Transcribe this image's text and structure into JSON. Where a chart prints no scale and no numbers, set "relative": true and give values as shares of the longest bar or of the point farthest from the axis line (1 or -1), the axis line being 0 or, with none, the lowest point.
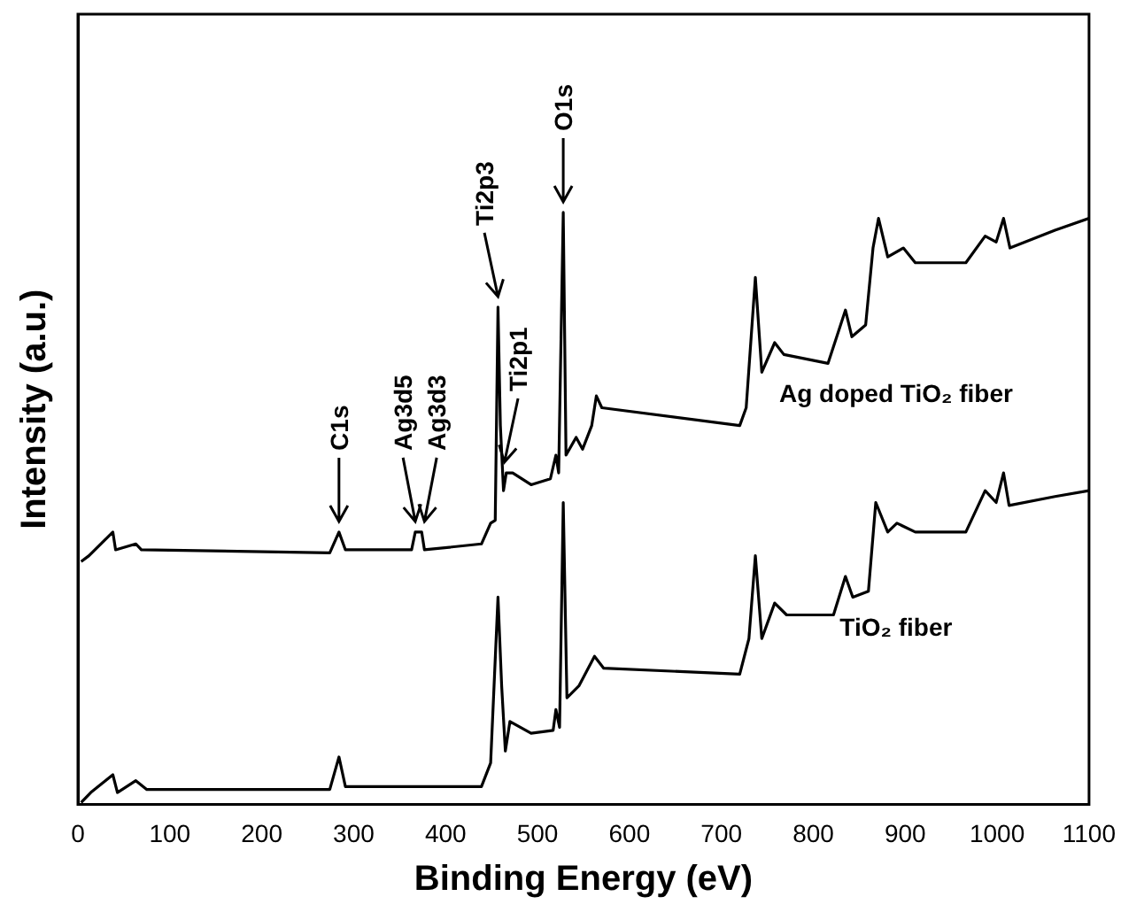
{
  "chart_data": {
    "type": "line",
    "xlabel": "Binding Energy (eV)",
    "ylabel": "Intensity (a.u.)",
    "relative": true,
    "tick_labels": "x",
    "grid": false,
    "legend": false,
    "marker": "none",
    "line_style": "solid",
    "xlim": [
      0,
      1100
    ],
    "xticks": [
      0,
      100,
      200,
      300,
      400,
      500,
      600,
      700,
      800,
      900,
      1000,
      1100
    ],
    "series": [
      {
        "name": "Ag doped TiO₂ fiber",
        "color": "#000000",
        "x": [
          3.5,
          12,
          38,
          41,
          63,
          69,
          274,
          284,
          291,
          363,
          367,
          374,
          377,
          439,
          449,
          454,
          457,
          459.6,
          463,
          466,
          473,
          493,
          514,
          520,
          523,
          528,
          531,
          542,
          549,
          559,
          564,
          570,
          720,
          727,
          737,
          744,
          758,
          768,
          816,
          835,
          842,
          857,
          865,
          871,
          881,
          898,
          911,
          966,
          987,
          999,
          1007,
          1014,
          1063,
          1100
        ],
        "values": [
          0.41,
          0.42,
          0.46,
          0.43,
          0.44,
          0.43,
          0.425,
          0.46,
          0.43,
          0.43,
          0.46,
          0.46,
          0.43,
          0.44,
          0.475,
          0.48,
          0.84,
          0.64,
          0.53,
          0.56,
          0.56,
          0.54,
          0.55,
          0.59,
          0.56,
          1.0,
          0.59,
          0.62,
          0.6,
          0.64,
          0.69,
          0.67,
          0.64,
          0.67,
          0.89,
          0.73,
          0.78,
          0.76,
          0.745,
          0.835,
          0.79,
          0.81,
          0.94,
          0.99,
          0.925,
          0.94,
          0.915,
          0.915,
          0.96,
          0.95,
          0.99,
          0.94,
          0.97,
          0.99
        ]
      },
      {
        "name": "TiO₂ fiber",
        "color": "#000000",
        "x": [
          3.5,
          14,
          38,
          43,
          63,
          75,
          274,
          284,
          291,
          439,
          449,
          457,
          461,
          465,
          470,
          493,
          517,
          520,
          524,
          528,
          532,
          545,
          562,
          572,
          720,
          730,
          737,
          744,
          758,
          771,
          822,
          835,
          843,
          860,
          868,
          881,
          891,
          911,
          966,
          987,
          999,
          1007,
          1013,
          1063,
          1100
        ],
        "values": [
          0.003,
          0.02,
          0.05,
          0.02,
          0.04,
          0.025,
          0.025,
          0.08,
          0.03,
          0.03,
          0.07,
          0.35,
          0.2,
          0.09,
          0.14,
          0.12,
          0.125,
          0.16,
          0.13,
          0.51,
          0.18,
          0.2,
          0.25,
          0.23,
          0.22,
          0.28,
          0.42,
          0.28,
          0.34,
          0.32,
          0.32,
          0.385,
          0.35,
          0.36,
          0.51,
          0.46,
          0.475,
          0.46,
          0.46,
          0.53,
          0.51,
          0.56,
          0.505,
          0.52,
          0.53
        ]
      }
    ],
    "annotations": [
      {
        "text": "C1s",
        "x": 284,
        "y": 0.46
      },
      {
        "text": "Ag3d5",
        "x": 367,
        "y": 0.46
      },
      {
        "text": "Ag3d3",
        "x": 377,
        "y": 0.46
      },
      {
        "text": "Ti2p3",
        "x": 457,
        "y": 0.84
      },
      {
        "text": "Ti2p1",
        "x": 464,
        "y": 0.56
      },
      {
        "text": "O1s",
        "x": 528,
        "y": 1.0
      }
    ]
  }
}
